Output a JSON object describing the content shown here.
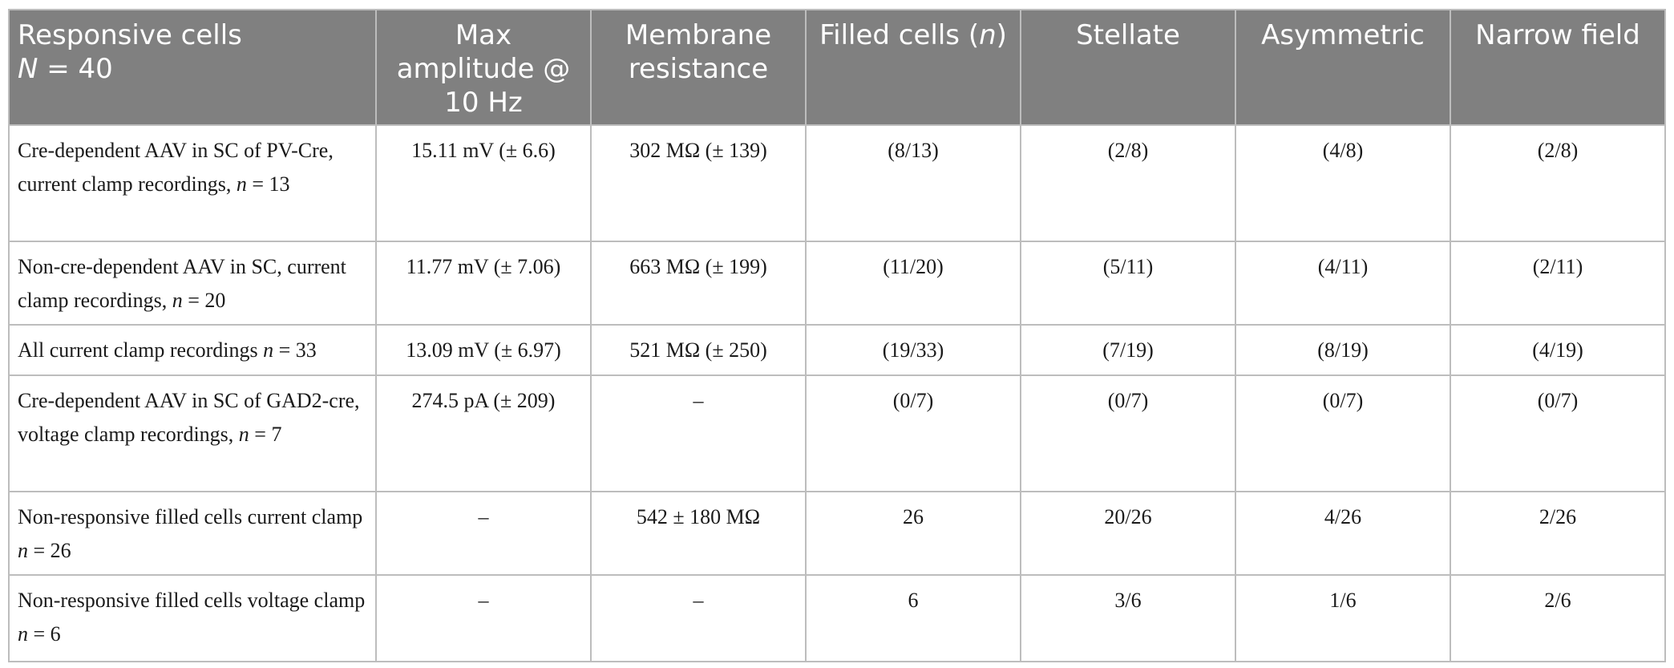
{
  "columns": [
    {
      "label_line1": "Responsive cells",
      "label_n_sym": "N",
      "label_n_rest": " = 40"
    },
    {
      "label": "Max amplitude @ 10 Hz"
    },
    {
      "label": "Membrane resistance"
    },
    {
      "label_pre": "Filled cells (",
      "label_it": "n",
      "label_post": ")"
    },
    {
      "label": "Stellate"
    },
    {
      "label": "Asymmetric"
    },
    {
      "label": "Narrow field"
    }
  ],
  "rows": [
    {
      "label_pre": "Cre-dependent AAV in SC of PV-Cre, current clamp recordings, ",
      "label_it": "n",
      "label_post": " = 13",
      "cells": [
        "15.11 mV (± 6.6)",
        "302 MΩ (± 139)",
        "(8/13)",
        "(2/8)",
        "(4/8)",
        "(2/8)"
      ]
    },
    {
      "label_pre": "Non-cre-dependent AAV in SC, current clamp recordings, ",
      "label_it": "n",
      "label_post": " = 20",
      "cells": [
        "11.77 mV (± 7.06)",
        "663 MΩ (± 199)",
        "(11/20)",
        "(5/11)",
        "(4/11)",
        "(2/11)"
      ]
    },
    {
      "label_pre": "All current clamp recordings ",
      "label_it": "n",
      "label_post": " = 33",
      "cells": [
        "13.09 mV (± 6.97)",
        "521 MΩ (± 250)",
        "(19/33)",
        "(7/19)",
        "(8/19)",
        "(4/19)"
      ]
    },
    {
      "label_pre": "Cre-dependent AAV in SC of GAD2-cre, voltage clamp recordings, ",
      "label_it": "n",
      "label_post": " = 7",
      "cells": [
        "274.5 pA (± 209)",
        "–",
        "(0/7)",
        "(0/7)",
        "(0/7)",
        "(0/7)"
      ]
    },
    {
      "label_pre": "Non-responsive filled cells current clamp ",
      "label_it": "n",
      "label_post": " = 26",
      "cells": [
        "–",
        "542 ± 180 MΩ",
        "26",
        "20/26",
        "4/26",
        "2/26"
      ]
    },
    {
      "label_pre": "Non-responsive filled cells voltage clamp ",
      "label_it": "n",
      "label_post": " = 6",
      "cells": [
        "–",
        "–",
        "6",
        "3/6",
        "1/6",
        "2/6"
      ]
    }
  ],
  "colors": {
    "header_bg": "#808080",
    "header_text": "#ffffff",
    "border": "#bdbdbd",
    "body_text": "#1a1a1a"
  }
}
